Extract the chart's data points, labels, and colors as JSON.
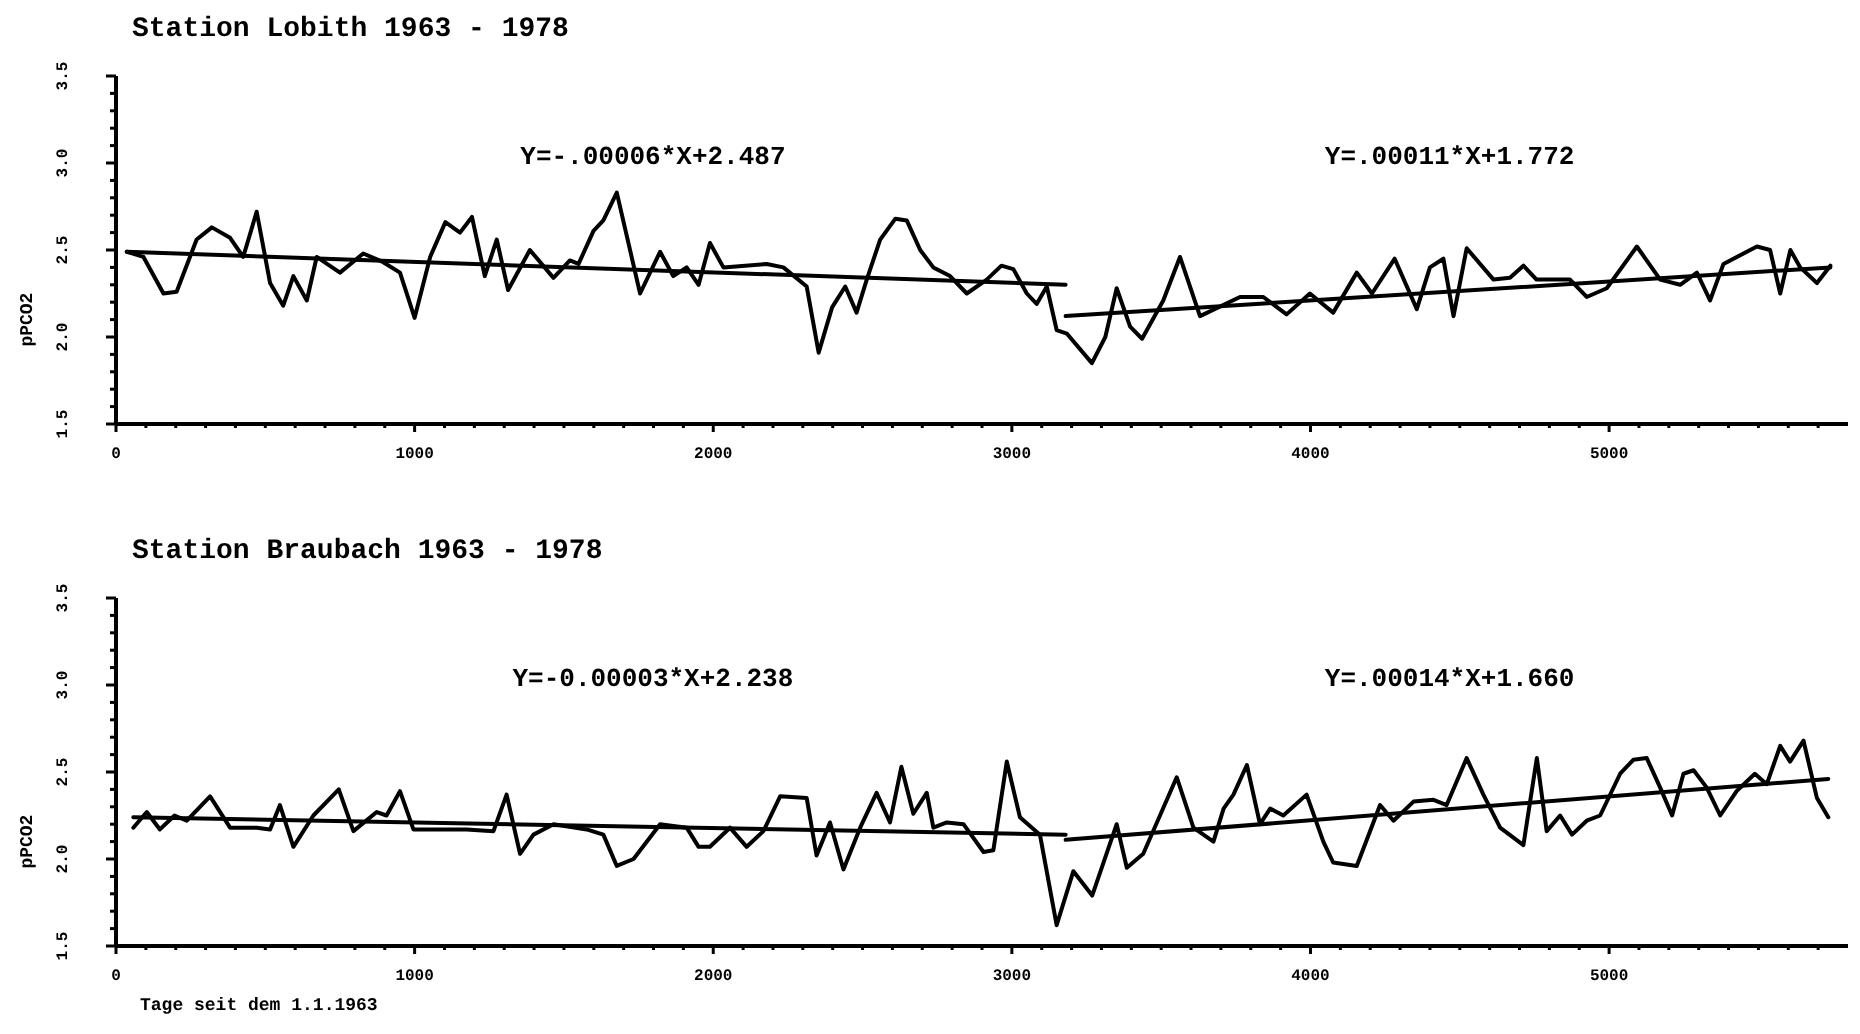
{
  "chart_data": [
    {
      "type": "line",
      "title": "Station Lobith 1963 - 1978",
      "ylabel": "pPCO2",
      "annotations": [
        "Y=-.00006*X+2.487",
        "Y=.00011*X+1.772"
      ],
      "xlim": [
        0,
        5800
      ],
      "ylim": [
        1.5,
        3.5
      ],
      "xticks": [
        0,
        {
          "value": 100,
          "label": null
        },
        {
          "value": 200,
          "label": null
        },
        {
          "value": 300,
          "label": null
        },
        {
          "value": 400,
          "label": null
        },
        {
          "value": 500,
          "label": null
        },
        {
          "value": 600,
          "label": null
        },
        {
          "value": 700,
          "label": null
        },
        {
          "value": 800,
          "label": null
        },
        {
          "value": 900,
          "label": null
        },
        1000,
        {
          "value": 1100,
          "label": null
        },
        {
          "value": 1200,
          "label": null
        },
        {
          "value": 1300,
          "label": null
        },
        {
          "value": 1400,
          "label": null
        },
        {
          "value": 1500,
          "label": null
        },
        {
          "value": 1600,
          "label": null
        },
        {
          "value": 1700,
          "label": null
        },
        {
          "value": 1800,
          "label": null
        },
        {
          "value": 1900,
          "label": null
        },
        2000,
        {
          "value": 2100,
          "label": null
        },
        {
          "value": 2200,
          "label": null
        },
        {
          "value": 2300,
          "label": null
        },
        {
          "value": 2400,
          "label": null
        },
        {
          "value": 2500,
          "label": null
        },
        {
          "value": 2600,
          "label": null
        },
        {
          "value": 2700,
          "label": null
        },
        {
          "value": 2800,
          "label": null
        },
        {
          "value": 2900,
          "label": null
        },
        3000,
        {
          "value": 3100,
          "label": null
        },
        {
          "value": 3200,
          "label": null
        },
        {
          "value": 3300,
          "label": null
        },
        {
          "value": 3400,
          "label": null
        },
        {
          "value": 3500,
          "label": null
        },
        {
          "value": 3600,
          "label": null
        },
        {
          "value": 3700,
          "label": null
        },
        {
          "value": 3800,
          "label": null
        },
        {
          "value": 3900,
          "label": null
        },
        4000,
        {
          "value": 4100,
          "label": null
        },
        {
          "value": 4200,
          "label": null
        },
        {
          "value": 4300,
          "label": null
        },
        {
          "value": 4400,
          "label": null
        },
        {
          "value": 4500,
          "label": null
        },
        {
          "value": 4600,
          "label": null
        },
        {
          "value": 4700,
          "label": null
        },
        {
          "value": 4800,
          "label": null
        },
        {
          "value": 4900,
          "label": null
        },
        5000,
        {
          "value": 5100,
          "label": null
        },
        {
          "value": 5200,
          "label": null
        },
        {
          "value": 5300,
          "label": null
        },
        {
          "value": 5400,
          "label": null
        },
        {
          "value": 5500,
          "label": null
        },
        {
          "value": 5600,
          "label": null
        },
        {
          "value": 5700,
          "label": null
        }
      ],
      "yticks": [
        {
          "value": 1.5,
          "label": "1.5"
        },
        {
          "value": 1.6,
          "label": null
        },
        {
          "value": 1.7,
          "label": null
        },
        {
          "value": 1.8,
          "label": null
        },
        {
          "value": 1.9,
          "label": null
        },
        {
          "value": 2,
          "label": "2.0"
        },
        {
          "value": 2.1,
          "label": null
        },
        {
          "value": 2.2,
          "label": null
        },
        {
          "value": 2.3,
          "label": null
        },
        {
          "value": 2.4,
          "label": null
        },
        {
          "value": 2.5,
          "label": "2.5"
        },
        {
          "value": 2.6,
          "label": null
        },
        {
          "value": 2.7,
          "label": null
        },
        {
          "value": 2.8,
          "label": null
        },
        {
          "value": 2.9,
          "label": null
        },
        {
          "value": 3,
          "label": "3.0"
        },
        {
          "value": 3.1,
          "label": null
        },
        {
          "value": 3.2,
          "label": null
        },
        {
          "value": 3.3,
          "label": null
        },
        {
          "value": 3.4,
          "label": null
        },
        {
          "value": 3.5,
          "label": "3.5"
        }
      ],
      "tick_labels": "xy",
      "grid": false,
      "marker": "none",
      "line_style": "solid",
      "series": [
        {
          "color": "#000000",
          "x": [
            36,
            92,
            159,
            203,
            270,
            321,
            382,
            426,
            471,
            516,
            560,
            594,
            639,
            672,
            750,
            828,
            895,
            951,
            1000,
            1052,
            1103,
            1152,
            1192,
            1235,
            1275,
            1313,
            1386,
            1465,
            1520,
            1549,
            1599,
            1632,
            1677,
            1755,
            1822,
            1866,
            1911,
            1951,
            1989,
            2034,
            2179,
            2235,
            2313,
            2353,
            2398,
            2442,
            2480,
            2514,
            2559,
            2610,
            2648,
            2693,
            2737,
            2793,
            2849,
            2916,
            2965,
            3005,
            3050,
            3083,
            3117,
            3150,
            3184,
            3268,
            3313,
            3351,
            3396,
            3436,
            3507,
            3563,
            3630,
            3764,
            3842,
            3920,
            3998,
            4076,
            4155,
            4206,
            4282,
            4356,
            4400,
            4445,
            4479,
            4523,
            4613,
            4668,
            4713,
            4757,
            4869,
            4925,
            4992,
            5093,
            5171,
            5238,
            5294,
            5338,
            5383,
            5495,
            5539,
            5573,
            5607,
            5640,
            5696,
            5741
          ],
          "values": [
            2.49,
            2.46,
            2.25,
            2.26,
            2.56,
            2.63,
            2.57,
            2.46,
            2.72,
            2.31,
            2.18,
            2.35,
            2.21,
            2.46,
            2.37,
            2.48,
            2.43,
            2.37,
            2.11,
            2.46,
            2.66,
            2.6,
            2.69,
            2.35,
            2.56,
            2.27,
            2.5,
            2.34,
            2.44,
            2.42,
            2.61,
            2.67,
            2.83,
            2.25,
            2.49,
            2.35,
            2.4,
            2.3,
            2.54,
            2.4,
            2.42,
            2.4,
            2.29,
            1.91,
            2.17,
            2.29,
            2.14,
            2.33,
            2.56,
            2.68,
            2.67,
            2.5,
            2.4,
            2.35,
            2.25,
            2.33,
            2.41,
            2.39,
            2.25,
            2.19,
            2.29,
            2.04,
            2.02,
            1.85,
            2.0,
            2.28,
            2.06,
            1.99,
            2.21,
            2.46,
            2.12,
            2.23,
            2.23,
            2.13,
            2.25,
            2.14,
            2.37,
            2.25,
            2.45,
            2.16,
            2.4,
            2.45,
            2.12,
            2.51,
            2.33,
            2.34,
            2.41,
            2.33,
            2.33,
            2.23,
            2.28,
            2.52,
            2.33,
            2.3,
            2.37,
            2.21,
            2.42,
            2.52,
            2.5,
            2.25,
            2.5,
            2.4,
            2.31,
            2.41
          ]
        },
        {
          "type": "line",
          "color": "#000000",
          "x": [
            36,
            3180
          ],
          "values": [
            2.49,
            2.3
          ]
        },
        {
          "type": "line",
          "color": "#000000",
          "x": [
            3180,
            5741
          ],
          "values": [
            2.12,
            2.4
          ]
        }
      ]
    },
    {
      "type": "line",
      "title": "Station Braubach 1963 - 1978",
      "ylabel": "pPCO2",
      "xlabel": "Tage seit dem 1.1.1963",
      "annotations": [
        "Y=-0.00003*X+2.238",
        "Y=.00014*X+1.660"
      ],
      "xlim": [
        0,
        5800
      ],
      "ylim": [
        1.5,
        3.5
      ],
      "xticks": [
        0,
        {
          "value": 100,
          "label": null
        },
        {
          "value": 200,
          "label": null
        },
        {
          "value": 300,
          "label": null
        },
        {
          "value": 400,
          "label": null
        },
        {
          "value": 500,
          "label": null
        },
        {
          "value": 600,
          "label": null
        },
        {
          "value": 700,
          "label": null
        },
        {
          "value": 800,
          "label": null
        },
        {
          "value": 900,
          "label": null
        },
        1000,
        {
          "value": 1100,
          "label": null
        },
        {
          "value": 1200,
          "label": null
        },
        {
          "value": 1300,
          "label": null
        },
        {
          "value": 1400,
          "label": null
        },
        {
          "value": 1500,
          "label": null
        },
        {
          "value": 1600,
          "label": null
        },
        {
          "value": 1700,
          "label": null
        },
        {
          "value": 1800,
          "label": null
        },
        {
          "value": 1900,
          "label": null
        },
        2000,
        {
          "value": 2100,
          "label": null
        },
        {
          "value": 2200,
          "label": null
        },
        {
          "value": 2300,
          "label": null
        },
        {
          "value": 2400,
          "label": null
        },
        {
          "value": 2500,
          "label": null
        },
        {
          "value": 2600,
          "label": null
        },
        {
          "value": 2700,
          "label": null
        },
        {
          "value": 2800,
          "label": null
        },
        {
          "value": 2900,
          "label": null
        },
        3000,
        {
          "value": 3100,
          "label": null
        },
        {
          "value": 3200,
          "label": null
        },
        {
          "value": 3300,
          "label": null
        },
        {
          "value": 3400,
          "label": null
        },
        {
          "value": 3500,
          "label": null
        },
        {
          "value": 3600,
          "label": null
        },
        {
          "value": 3700,
          "label": null
        },
        {
          "value": 3800,
          "label": null
        },
        {
          "value": 3900,
          "label": null
        },
        4000,
        {
          "value": 4100,
          "label": null
        },
        {
          "value": 4200,
          "label": null
        },
        {
          "value": 4300,
          "label": null
        },
        {
          "value": 4400,
          "label": null
        },
        {
          "value": 4500,
          "label": null
        },
        {
          "value": 4600,
          "label": null
        },
        {
          "value": 4700,
          "label": null
        },
        {
          "value": 4800,
          "label": null
        },
        {
          "value": 4900,
          "label": null
        },
        5000,
        {
          "value": 5100,
          "label": null
        },
        {
          "value": 5200,
          "label": null
        },
        {
          "value": 5300,
          "label": null
        },
        {
          "value": 5400,
          "label": null
        },
        {
          "value": 5500,
          "label": null
        },
        {
          "value": 5600,
          "label": null
        },
        {
          "value": 5700,
          "label": null
        }
      ],
      "yticks": [
        {
          "value": 1.5,
          "label": "1.5"
        },
        {
          "value": 1.6,
          "label": null
        },
        {
          "value": 1.7,
          "label": null
        },
        {
          "value": 1.8,
          "label": null
        },
        {
          "value": 1.9,
          "label": null
        },
        {
          "value": 2,
          "label": "2.0"
        },
        {
          "value": 2.1,
          "label": null
        },
        {
          "value": 2.2,
          "label": null
        },
        {
          "value": 2.3,
          "label": null
        },
        {
          "value": 2.4,
          "label": null
        },
        {
          "value": 2.5,
          "label": "2.5"
        },
        {
          "value": 2.6,
          "label": null
        },
        {
          "value": 2.7,
          "label": null
        },
        {
          "value": 2.8,
          "label": null
        },
        {
          "value": 2.9,
          "label": null
        },
        {
          "value": 3,
          "label": "3.0"
        },
        {
          "value": 3.1,
          "label": null
        },
        {
          "value": 3.2,
          "label": null
        },
        {
          "value": 3.3,
          "label": null
        },
        {
          "value": 3.4,
          "label": null
        },
        {
          "value": 3.5,
          "label": "3.5"
        }
      ],
      "tick_labels": "xy",
      "grid": false,
      "marker": "none",
      "line_style": "solid",
      "series": [
        {
          "color": "#000000",
          "x": [
            58,
            103,
            147,
            196,
            237,
            315,
            382,
            471,
            516,
            549,
            594,
            661,
            746,
            795,
            873,
            906,
            951,
            996,
            1174,
            1264,
            1308,
            1353,
            1398,
            1465,
            1576,
            1632,
            1677,
            1733,
            1822,
            1911,
            1951,
            1989,
            2056,
            2112,
            2168,
            2224,
            2313,
            2346,
            2391,
            2436,
            2492,
            2547,
            2592,
            2630,
            2670,
            2715,
            2737,
            2782,
            2838,
            2905,
            2938,
            2983,
            3027,
            3094,
            3150,
            3206,
            3269,
            3351,
            3385,
            3440,
            3552,
            3608,
            3675,
            3709,
            3742,
            3787,
            3831,
            3865,
            3909,
            3987,
            4043,
            4076,
            4155,
            4233,
            4278,
            4345,
            4412,
            4456,
            4523,
            4579,
            4635,
            4713,
            4758,
            4791,
            4836,
            4876,
            4925,
            4970,
            5037,
            5081,
            5126,
            5171,
            5211,
            5249,
            5283,
            5327,
            5372,
            5427,
            5488,
            5528,
            5573,
            5606,
            5651,
            5696,
            5734
          ],
          "values": [
            2.18,
            2.27,
            2.17,
            2.25,
            2.22,
            2.36,
            2.18,
            2.18,
            2.17,
            2.31,
            2.07,
            2.25,
            2.4,
            2.16,
            2.27,
            2.25,
            2.39,
            2.17,
            2.17,
            2.16,
            2.37,
            2.03,
            2.14,
            2.2,
            2.17,
            2.14,
            1.96,
            2.0,
            2.2,
            2.18,
            2.07,
            2.07,
            2.18,
            2.07,
            2.16,
            2.36,
            2.35,
            2.02,
            2.21,
            1.94,
            2.18,
            2.38,
            2.21,
            2.53,
            2.26,
            2.38,
            2.18,
            2.21,
            2.2,
            2.04,
            2.05,
            2.56,
            2.24,
            2.14,
            1.62,
            1.93,
            1.79,
            2.2,
            1.95,
            2.03,
            2.47,
            2.18,
            2.1,
            2.29,
            2.37,
            2.54,
            2.2,
            2.29,
            2.25,
            2.37,
            2.1,
            1.98,
            1.96,
            2.31,
            2.22,
            2.33,
            2.34,
            2.31,
            2.58,
            2.37,
            2.18,
            2.08,
            2.58,
            2.16,
            2.25,
            2.14,
            2.22,
            2.25,
            2.49,
            2.57,
            2.58,
            2.41,
            2.25,
            2.49,
            2.51,
            2.41,
            2.25,
            2.39,
            2.49,
            2.43,
            2.65,
            2.56,
            2.68,
            2.35,
            2.24
          ]
        },
        {
          "type": "line",
          "color": "#000000",
          "x": [
            58,
            3180
          ],
          "values": [
            2.24,
            2.14
          ]
        },
        {
          "type": "line",
          "color": "#000000",
          "x": [
            3180,
            5734
          ],
          "values": [
            2.11,
            2.46
          ]
        }
      ]
    }
  ]
}
